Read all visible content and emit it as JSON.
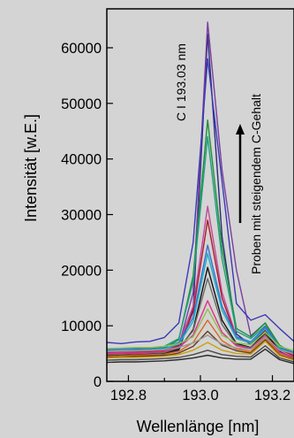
{
  "chart_data": {
    "type": "line",
    "xlabel": "Wellenlänge [nm]",
    "ylabel": "Intensität  [w.E.]",
    "xlim": [
      192.74,
      193.26
    ],
    "ylim": [
      0,
      67000
    ],
    "xticks": [
      192.8,
      192.9,
      193.0,
      193.1,
      193.2
    ],
    "xtick_labels": [
      "192.8",
      "",
      "193.0",
      "",
      "193.2"
    ],
    "yticks": [
      0,
      10000,
      20000,
      30000,
      40000,
      50000,
      60000
    ],
    "ytick_labels": [
      "0",
      "10000",
      "20000",
      "30000",
      "40000",
      "50000",
      "60000"
    ],
    "grid": false,
    "background": "#d4d4d4",
    "plot_background": "#d4d4d4",
    "annotations": {
      "line_label": "C I 193.03 nm",
      "arrow_label": "Proben mit steigendem C-Gehalt"
    },
    "x": [
      192.74,
      192.78,
      192.82,
      192.86,
      192.9,
      192.94,
      192.98,
      193.02,
      193.06,
      193.1,
      193.14,
      193.18,
      193.22,
      193.26
    ],
    "series": [
      {
        "color": "#2b2b7a",
        "values": [
          4400,
          4700,
          4600,
          4700,
          4800,
          5600,
          13000,
          62500,
          26000,
          8500,
          6600,
          9200,
          5400,
          4100
        ]
      },
      {
        "color": "#7a3fa0",
        "values": [
          4900,
          5100,
          5200,
          5300,
          5200,
          6300,
          16000,
          64600,
          38000,
          20000,
          8200,
          10500,
          6000,
          4600
        ]
      },
      {
        "color": "#3a3ab5",
        "values": [
          7000,
          6800,
          7100,
          7200,
          7900,
          10500,
          25000,
          58000,
          36000,
          14000,
          11000,
          12000,
          9500,
          7200
        ]
      },
      {
        "color": "#1a8f3a",
        "values": [
          5600,
          5500,
          5700,
          5800,
          6000,
          7500,
          19000,
          47000,
          24000,
          9500,
          8000,
          10500,
          6500,
          5100
        ]
      },
      {
        "color": "#20a080",
        "values": [
          5800,
          5900,
          5900,
          6000,
          6300,
          7700,
          18000,
          44000,
          22000,
          9000,
          7700,
          10000,
          6200,
          5000
        ]
      },
      {
        "color": "#c04a9a",
        "values": [
          5200,
          5300,
          5400,
          5500,
          5700,
          6800,
          13500,
          31500,
          16000,
          8000,
          7000,
          9500,
          5800,
          4700
        ]
      },
      {
        "color": "#b0182a",
        "values": [
          5100,
          5100,
          5200,
          5300,
          5500,
          6500,
          12500,
          29000,
          15000,
          7700,
          6900,
          9200,
          5700,
          4600
        ]
      },
      {
        "color": "#3a6fd0",
        "values": [
          5700,
          5800,
          5900,
          6000,
          6200,
          7000,
          11500,
          24500,
          13500,
          8000,
          7100,
          9800,
          6100,
          5200
        ]
      },
      {
        "color": "#18b0c8",
        "values": [
          5500,
          5600,
          5600,
          5700,
          5900,
          6700,
          10800,
          23000,
          12800,
          7700,
          6900,
          9400,
          5900,
          4900
        ]
      },
      {
        "color": "#111111",
        "values": [
          4700,
          4700,
          4800,
          4900,
          5000,
          5800,
          9300,
          20500,
          11000,
          6800,
          6100,
          8700,
          5300,
          4300
        ]
      },
      {
        "color": "#6a6a6a",
        "values": [
          4800,
          4900,
          5000,
          5100,
          5200,
          6000,
          9100,
          18500,
          10200,
          6600,
          6000,
          8400,
          5200,
          4200
        ]
      },
      {
        "color": "#e0308a",
        "values": [
          5000,
          5100,
          5100,
          5200,
          5400,
          6100,
          8300,
          14500,
          8800,
          6400,
          5900,
          8200,
          5200,
          4400
        ]
      },
      {
        "color": "#8bc34a",
        "values": [
          5900,
          6000,
          6100,
          6100,
          6300,
          6800,
          8000,
          13000,
          8300,
          6900,
          6600,
          8800,
          6300,
          5500
        ]
      },
      {
        "color": "#d46a1a",
        "values": [
          4500,
          4600,
          4700,
          4800,
          4900,
          5400,
          7000,
          11000,
          7300,
          5800,
          5400,
          7900,
          4900,
          4000
        ]
      },
      {
        "color": "#6b3a1a",
        "values": [
          4300,
          4400,
          4500,
          4500,
          4600,
          5100,
          6300,
          9000,
          6500,
          5500,
          5100,
          7500,
          4700,
          3900
        ]
      },
      {
        "color": "#9a9a9a",
        "values": [
          5400,
          5500,
          5500,
          5600,
          5700,
          6100,
          6900,
          8300,
          6700,
          6000,
          5800,
          8000,
          5600,
          5000
        ]
      },
      {
        "color": "#c8a010",
        "values": [
          4200,
          4300,
          4300,
          4400,
          4500,
          4800,
          5600,
          7000,
          5600,
          5000,
          4900,
          7200,
          4600,
          3800
        ]
      },
      {
        "color": "#4a4a4a",
        "values": [
          3800,
          3900,
          3900,
          4000,
          4100,
          4300,
          4800,
          5600,
          4800,
          4500,
          4400,
          6400,
          4200,
          3500
        ]
      },
      {
        "color": "#2a2a2a",
        "values": [
          3400,
          3500,
          3500,
          3600,
          3700,
          3900,
          4200,
          4700,
          4200,
          4000,
          4000,
          5800,
          3900,
          3200
        ]
      }
    ]
  }
}
